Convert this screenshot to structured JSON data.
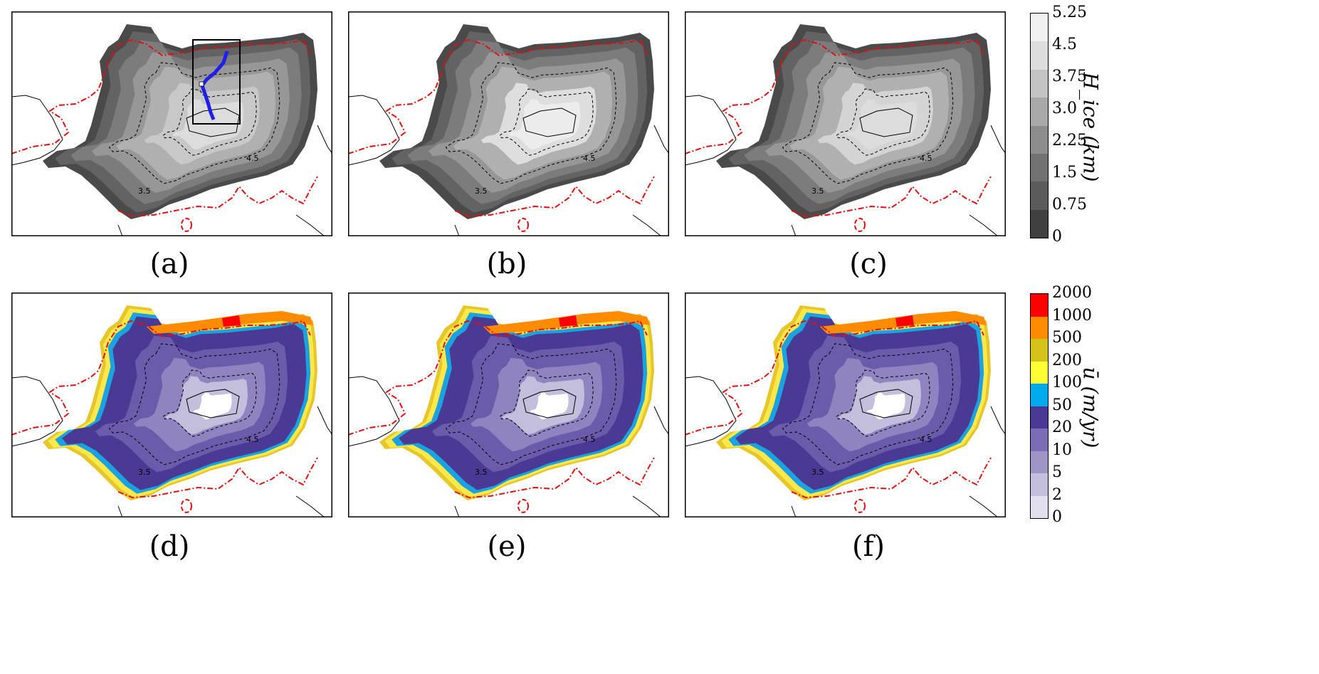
{
  "panels": [
    {
      "id": "a",
      "label": "(a)",
      "field": "ice-thickness",
      "variant": 0
    },
    {
      "id": "b",
      "label": "(b)",
      "field": "ice-thickness",
      "variant": 1
    },
    {
      "id": "c",
      "label": "(c)",
      "field": "ice-thickness",
      "variant": 2
    },
    {
      "id": "d",
      "label": "(d)",
      "field": "velocity",
      "variant": 0
    },
    {
      "id": "e",
      "label": "(e)",
      "field": "velocity",
      "variant": 1
    },
    {
      "id": "f",
      "label": "(f)",
      "field": "velocity",
      "variant": 2
    }
  ],
  "contour_labels": [
    "3.5",
    "4.5"
  ],
  "colorbar_thickness": {
    "title": "H_ice (km)",
    "ticks": [
      "5.25",
      "4.5",
      "3.75",
      "3.0",
      "2.25",
      "1.5",
      "0.75",
      "0"
    ],
    "colors": [
      "#f0f0f0",
      "#dcdcdc",
      "#c4c4c4",
      "#a9a9a9",
      "#8c8c8c",
      "#727272",
      "#5a5a5a",
      "#404040"
    ]
  },
  "colorbar_velocity": {
    "title": "ū (m/yr)",
    "ticks": [
      "2000",
      "1000",
      "500",
      "200",
      "100",
      "50",
      "20",
      "10",
      "5",
      "2",
      "0"
    ],
    "colors": [
      "#ff0000",
      "#ff8c00",
      "#d4c21a",
      "#ffff33",
      "#00aaee",
      "#4b3a94",
      "#7b6db5",
      "#9f94c8",
      "#c3bedb",
      "#e2dfee"
    ]
  },
  "chart_data": [
    {
      "type": "heatmap",
      "panel": "(a)",
      "variable": "H_ice",
      "units": "km",
      "colorbar_levels": [
        0,
        0.75,
        1.5,
        2.25,
        3.0,
        3.75,
        4.5,
        5.25
      ],
      "contour_labels": [
        "3.5",
        "4.5"
      ]
    },
    {
      "type": "heatmap",
      "panel": "(b)",
      "variable": "H_ice",
      "units": "km",
      "colorbar_levels": [
        0,
        0.75,
        1.5,
        2.25,
        3.0,
        3.75,
        4.5,
        5.25
      ],
      "contour_labels": [
        "3.5",
        "4.5"
      ]
    },
    {
      "type": "heatmap",
      "panel": "(c)",
      "variable": "H_ice",
      "units": "km",
      "colorbar_levels": [
        0,
        0.75,
        1.5,
        2.25,
        3.0,
        3.75,
        4.5,
        5.25
      ],
      "contour_labels": [
        "3.5",
        "4.5"
      ]
    },
    {
      "type": "heatmap",
      "panel": "(d)",
      "variable": "ū",
      "units": "m/yr",
      "colorbar_levels": [
        0,
        2,
        5,
        10,
        20,
        50,
        100,
        200,
        500,
        1000,
        2000
      ],
      "contour_labels": [
        "3.5",
        "4.5"
      ]
    },
    {
      "type": "heatmap",
      "panel": "(e)",
      "variable": "ū",
      "units": "m/yr",
      "colorbar_levels": [
        0,
        2,
        5,
        10,
        20,
        50,
        100,
        200,
        500,
        1000,
        2000
      ],
      "contour_labels": [
        "3.5",
        "4.5"
      ]
    },
    {
      "type": "heatmap",
      "panel": "(f)",
      "variable": "ū",
      "units": "m/yr",
      "colorbar_levels": [
        0,
        2,
        5,
        10,
        20,
        50,
        100,
        200,
        500,
        1000,
        2000
      ],
      "contour_labels": [
        "3.5",
        "4.5"
      ]
    }
  ]
}
